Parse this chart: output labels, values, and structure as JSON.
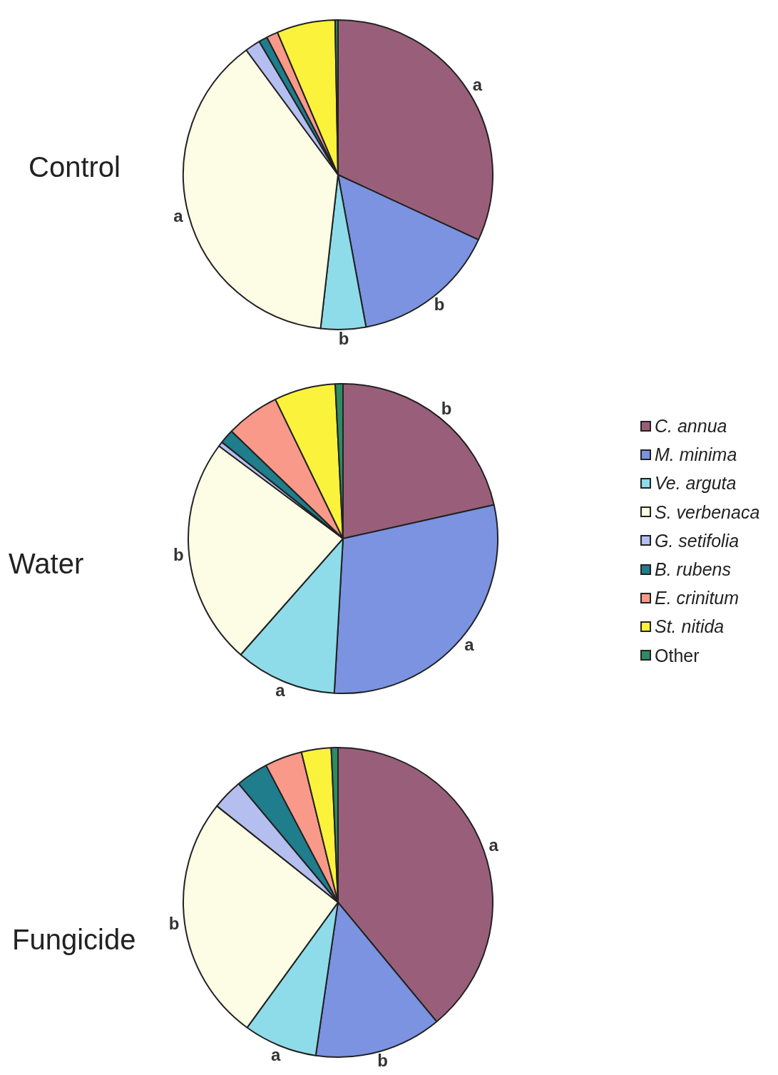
{
  "chart_data": [
    {
      "type": "pie",
      "title": "Control",
      "legend": false,
      "categories": [
        null,
        null,
        null,
        null,
        null,
        null,
        null,
        null,
        null
      ],
      "values": [
        31.9,
        15.2,
        4.7,
        38.1,
        1.6,
        0.9,
        1.2,
        6.1,
        0.3
      ],
      "colors": [
        "#995f7a",
        "#7b93e0",
        "#8edcea",
        "#fdfde6",
        "#b4bff0",
        "#1f7d8c",
        "#f9998a",
        "#fbf23c",
        "#2e8b63"
      ],
      "annotations": [
        "a",
        "b",
        "b",
        "a"
      ]
    },
    {
      "type": "pie",
      "title": "Water",
      "legend": "right",
      "categories": [
        "C. annua",
        "M. minima",
        "Ve. arguta",
        "S. verbenaca",
        "G. setifolia",
        "B. rubens",
        "E. crinitum",
        "St. nitida",
        "Other"
      ],
      "values": [
        21.5,
        29.4,
        10.6,
        23.7,
        0.5,
        1.5,
        5.6,
        6.4,
        0.8
      ],
      "colors": [
        "#995f7a",
        "#7b93e0",
        "#8edcea",
        "#fdfde6",
        "#b4bff0",
        "#1f7d8c",
        "#f9998a",
        "#fbf23c",
        "#2e8b63"
      ],
      "annotations": [
        {
          "text": "b",
          "x": "C. annua"
        },
        {
          "text": "a",
          "x": "M. minima"
        },
        {
          "text": "a",
          "x": "Ve. arguta"
        },
        {
          "text": "b",
          "x": "S. verbenaca"
        }
      ]
    },
    {
      "type": "pie",
      "title": "Fungicide",
      "legend": false,
      "categories": [
        null,
        null,
        null,
        null,
        null,
        null,
        null,
        null,
        null
      ],
      "values": [
        39.0,
        13.3,
        7.7,
        25.7,
        3.2,
        3.4,
        3.9,
        3.1,
        0.7
      ],
      "colors": [
        "#995f7a",
        "#7b93e0",
        "#8edcea",
        "#fdfde6",
        "#b4bff0",
        "#1f7d8c",
        "#f9998a",
        "#fbf23c",
        "#2e8b63"
      ],
      "annotations": [
        "a",
        "b",
        "a",
        "b"
      ]
    }
  ]
}
